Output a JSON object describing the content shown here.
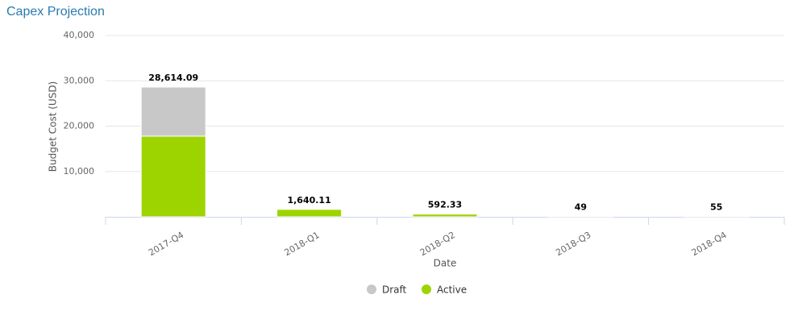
{
  "chart_data": {
    "type": "stacked-bar",
    "title": "Capex Projection",
    "x_label": "Date",
    "y_label": "Budget Cost (USD)",
    "categories": [
      "2017-Q4",
      "2018-Q1",
      "2018-Q2",
      "2018-Q3",
      "2018-Q4"
    ],
    "series": [
      {
        "name": "Active",
        "color": "#9dd400",
        "values": [
          17800,
          1640.11,
          592.33,
          49,
          55
        ]
      },
      {
        "name": "Draft",
        "color": "#c8c8c8",
        "values": [
          10814.09,
          0,
          0,
          0,
          0
        ]
      }
    ],
    "totals": [
      28614.09,
      1640.11,
      592.33,
      49,
      55
    ],
    "total_labels": [
      "28,614.09",
      "1,640.11",
      "592.33",
      "49",
      "55"
    ],
    "legend_order": [
      1,
      0
    ],
    "ylim": [
      0,
      40000
    ],
    "yticks": [
      {
        "value": 10000,
        "label": "10,000"
      },
      {
        "value": 20000,
        "label": "20,000"
      },
      {
        "value": 30000,
        "label": "30,000"
      },
      {
        "value": 40000,
        "label": "40,000"
      }
    ],
    "grid": true
  }
}
